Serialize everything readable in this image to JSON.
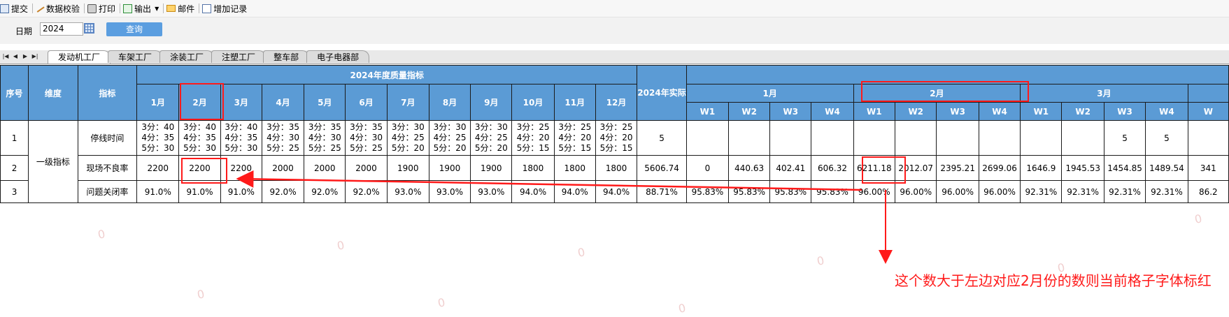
{
  "toolbar": {
    "submit": "提交",
    "validate": "数据校验",
    "print": "打印",
    "export": "输出",
    "mail": "邮件",
    "add_record": "增加记录"
  },
  "filter": {
    "date_label": "日期",
    "date_value": "2024",
    "query_button": "查询"
  },
  "sheet_tabs": [
    "发动机工厂",
    "车架工厂",
    "涂装工厂",
    "注塑工厂",
    "整车部",
    "电子电器部"
  ],
  "table": {
    "headers": {
      "seq": "序号",
      "dimension": "维度",
      "indicator": "指标",
      "yearly_target": "2024年度质量指标",
      "actual": "2024年实际",
      "months": [
        "1月",
        "2月",
        "3月",
        "4月",
        "5月",
        "6月",
        "7月",
        "8月",
        "9月",
        "10月",
        "11月",
        "12月"
      ],
      "weekly_months": [
        "1月",
        "2月",
        "3月"
      ],
      "weeks": [
        "W1",
        "W2",
        "W3",
        "W4",
        "W1",
        "W2",
        "W3",
        "W4",
        "W1",
        "W2",
        "W3",
        "W4",
        "W"
      ]
    },
    "dimension_value": "一级指标",
    "rows": [
      {
        "seq": "1",
        "indicator": "停线时间",
        "months": [
          "3分：40\n4分：35\n5分：30",
          "3分：40\n4分：35\n5分：30",
          "3分：40\n4分：35\n5分：30",
          "3分：35\n4分：30\n5分：25",
          "3分：35\n4分：30\n5分：25",
          "3分：35\n4分：30\n5分：25",
          "3分：30\n4分：25\n5分：20",
          "3分：30\n4分：25\n5分：20",
          "3分：30\n4分：25\n5分：20",
          "3分：25\n4分：20\n5分：15",
          "3分：25\n4分：20\n5分：15",
          "3分：25\n4分：20\n5分：15"
        ],
        "actual": "5",
        "weeks": [
          "",
          "",
          "",
          "",
          "",
          "",
          "",
          "",
          "",
          "",
          "5",
          "5",
          ""
        ]
      },
      {
        "seq": "2",
        "indicator": "现场不良率",
        "months": [
          "2200",
          "2200",
          "2200",
          "2000",
          "2000",
          "2000",
          "1900",
          "1900",
          "1900",
          "1800",
          "1800",
          "1800"
        ],
        "actual": "5606.74",
        "weeks": [
          "0",
          "440.63",
          "402.41",
          "606.32",
          "6211.18",
          "2012.07",
          "2395.21",
          "2699.06",
          "1646.9",
          "1945.53",
          "1454.85",
          "1489.54",
          "341"
        ]
      },
      {
        "seq": "3",
        "indicator": "问题关闭率",
        "months": [
          "91.0%",
          "91.0%",
          "91.0%",
          "92.0%",
          "92.0%",
          "92.0%",
          "93.0%",
          "93.0%",
          "93.0%",
          "94.0%",
          "94.0%",
          "94.0%"
        ],
        "actual": "88.71%",
        "weeks": [
          "95.83%",
          "95.83%",
          "95.83%",
          "95.83%",
          "96.00%",
          "96.00%",
          "96.00%",
          "96.00%",
          "92.31%",
          "92.31%",
          "92.31%",
          "92.31%",
          "86.2"
        ]
      }
    ]
  },
  "annotation": "这个数大于左边对应2月份的数则当前格子字体标红",
  "watermark_char": "0",
  "colors": {
    "header_bg": "#5b9bd5",
    "annotation_red": "#ff1a1a",
    "query_button": "#5b9ee0"
  }
}
